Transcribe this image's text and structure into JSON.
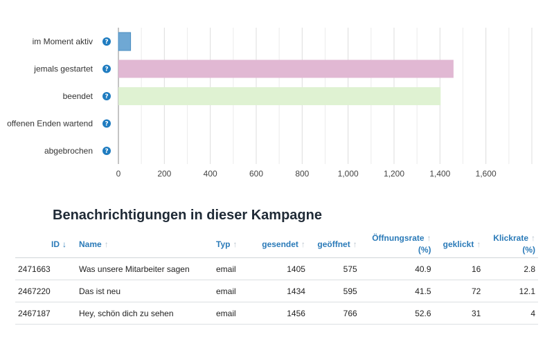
{
  "chart_data": {
    "type": "bar",
    "orientation": "horizontal",
    "categories": [
      "im Moment aktiv",
      "jemals gestartet",
      "beendet",
      "offenen Enden wartend",
      "abgebrochen"
    ],
    "values": [
      53,
      1459,
      1403,
      0,
      0
    ],
    "colors": [
      "#6fa8d4",
      "#e1b8d3",
      "#dff2d2",
      "#cccccc",
      "#cccccc"
    ],
    "xticks": [
      0,
      200,
      400,
      600,
      800,
      1000,
      1200,
      1400,
      1600
    ],
    "xtick_labels": [
      "0",
      "200",
      "400",
      "600",
      "800",
      "1,000",
      "1,200",
      "1,400",
      "1,600"
    ],
    "xlim": [
      0,
      1800
    ],
    "grid": true,
    "help_icon": "question-circle-icon"
  },
  "section": {
    "title": "Benachrichtigungen in dieser Kampagne"
  },
  "table": {
    "headers": {
      "id": "ID",
      "name": "Name",
      "typ": "Typ",
      "gesendet": "gesendet",
      "geoeffnet": "geöffnet",
      "oeffnungsrate_line1": "Öffnungsrate",
      "oeffnungsrate_line2": "(%)",
      "geklickt": "geklickt",
      "klickrate_line1": "Klickrate",
      "klickrate_line2": "(%)"
    },
    "sort_desc_arrow": "↓",
    "sort_arrow": "↑",
    "rows": [
      {
        "id": "2471663",
        "name": "Was unsere Mitarbeiter sagen",
        "typ": "email",
        "gesendet": "1405",
        "geoeffnet": "575",
        "oeffnungsrate": "40.9",
        "geklickt": "16",
        "klickrate": "2.8"
      },
      {
        "id": "2467220",
        "name": "Das ist neu",
        "typ": "email",
        "gesendet": "1434",
        "geoeffnet": "595",
        "oeffnungsrate": "41.5",
        "geklickt": "72",
        "klickrate": "12.1"
      },
      {
        "id": "2467187",
        "name": "Hey, schön dich zu sehen",
        "typ": "email",
        "gesendet": "1456",
        "geoeffnet": "766",
        "oeffnungsrate": "52.6",
        "geklickt": "31",
        "klickrate": "4"
      }
    ]
  }
}
